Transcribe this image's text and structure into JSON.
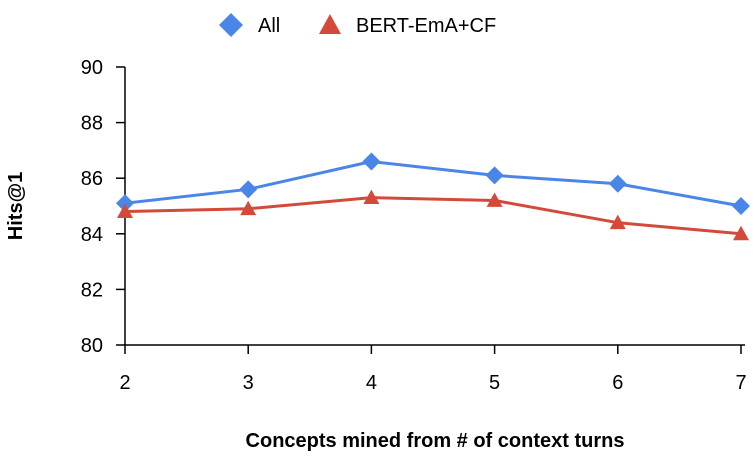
{
  "chart_data": {
    "type": "line",
    "title": "",
    "xlabel": "Concepts mined from # of context turns",
    "ylabel": "Hits@1",
    "categories": [
      "2",
      "3",
      "4",
      "5",
      "6",
      "7"
    ],
    "x": [
      2,
      3,
      4,
      5,
      6,
      7
    ],
    "xlim": [
      2,
      7
    ],
    "ylim": [
      80,
      90
    ],
    "yticks": [
      80,
      82,
      84,
      86,
      88,
      90
    ],
    "grid": false,
    "legend_position": "top",
    "series": [
      {
        "name": "All",
        "marker": "diamond",
        "color": "#4a86e8",
        "values": [
          85.1,
          85.6,
          86.6,
          86.1,
          85.8,
          85.0
        ]
      },
      {
        "name": "BERT-EmA+CF",
        "marker": "triangle",
        "color": "#d44a3a",
        "values": [
          84.8,
          84.9,
          85.3,
          85.2,
          84.4,
          84.0
        ]
      }
    ]
  }
}
